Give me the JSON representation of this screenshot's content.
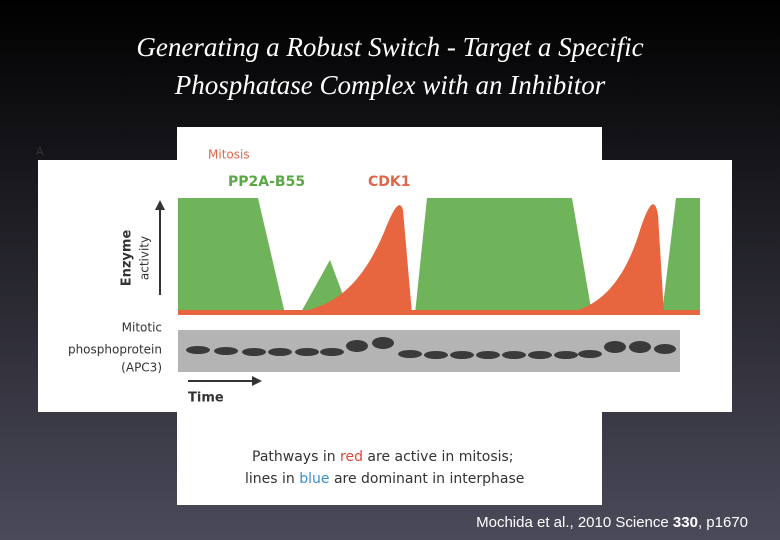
{
  "slide": {
    "title": [
      "Generating a Robust Switch - Target a Specific",
      "Phosphatase Complex with an Inhibitor"
    ],
    "figure": {
      "panel_label": "A",
      "top_label": "Mitosis",
      "legend": [
        "PP2A-B55",
        "CDK1"
      ],
      "y_axis_label": [
        "Enzyme",
        "activity"
      ],
      "blot_label": [
        "Mitotic",
        "phosphoprotein",
        "(APC3)"
      ],
      "x_axis_label": "Time",
      "caption": [
        [
          "Pathways in ",
          "red",
          " are active in mitosis;"
        ],
        [
          "lines in ",
          "blue",
          " are dominant in interphase"
        ]
      ]
    },
    "citation": [
      "Mochida et al., 2010 Science ",
      "330",
      ", p1670"
    ]
  }
}
